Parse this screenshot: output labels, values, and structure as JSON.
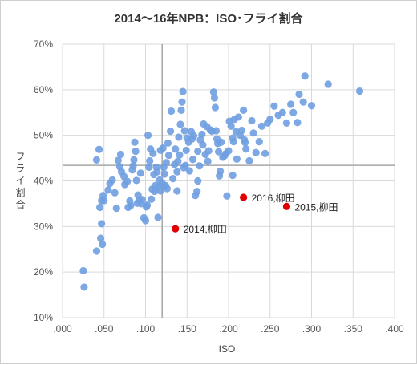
{
  "chart_data": {
    "type": "scatter",
    "title": "2014〜16年NPB：ISO･フライ割合",
    "xlabel": "ISO",
    "ylabel": "フライ割合",
    "xlim": [
      0,
      0.4
    ],
    "ylim": [
      0.1,
      0.7
    ],
    "x_ticks": [
      ".000",
      ".050",
      ".100",
      ".150",
      ".200",
      ".250",
      ".300",
      ".350",
      ".400"
    ],
    "y_ticks": [
      "10%",
      "20%",
      "30%",
      "40%",
      "50%",
      "60%",
      "70%"
    ],
    "reference_lines": {
      "x": 0.12,
      "y": 0.434
    },
    "grid": true,
    "colors": {
      "points": "#6f9fe0",
      "highlight": "#e00000",
      "gridline": "#d9d9d9",
      "reference": "#a6a6a6"
    },
    "series": [
      {
        "points": [
          [
            0.025,
            0.203
          ],
          [
            0.026,
            0.167
          ],
          [
            0.041,
            0.246
          ],
          [
            0.046,
            0.274
          ],
          [
            0.047,
            0.306
          ],
          [
            0.048,
            0.261
          ],
          [
            0.045,
            0.342
          ],
          [
            0.047,
            0.357
          ],
          [
            0.049,
            0.368
          ],
          [
            0.05,
            0.357
          ],
          [
            0.041,
            0.446
          ],
          [
            0.044,
            0.469
          ],
          [
            0.055,
            0.38
          ],
          [
            0.057,
            0.394
          ],
          [
            0.06,
            0.402
          ],
          [
            0.063,
            0.374
          ],
          [
            0.065,
            0.34
          ],
          [
            0.067,
            0.445
          ],
          [
            0.069,
            0.431
          ],
          [
            0.07,
            0.458
          ],
          [
            0.071,
            0.42
          ],
          [
            0.074,
            0.41
          ],
          [
            0.075,
            0.392
          ],
          [
            0.078,
            0.399
          ],
          [
            0.081,
            0.356
          ],
          [
            0.082,
            0.346
          ],
          [
            0.084,
            0.424
          ],
          [
            0.085,
            0.433
          ],
          [
            0.086,
            0.446
          ],
          [
            0.087,
            0.485
          ],
          [
            0.088,
            0.465
          ],
          [
            0.089,
            0.401
          ],
          [
            0.09,
            0.351
          ],
          [
            0.091,
            0.369
          ],
          [
            0.092,
            0.358
          ],
          [
            0.094,
            0.417
          ],
          [
            0.095,
            0.35
          ],
          [
            0.096,
            0.359
          ],
          [
            0.098,
            0.319
          ],
          [
            0.1,
            0.313
          ],
          [
            0.101,
            0.343
          ],
          [
            0.102,
            0.347
          ],
          [
            0.104,
            0.43
          ],
          [
            0.105,
            0.444
          ],
          [
            0.106,
            0.47
          ],
          [
            0.107,
            0.36
          ],
          [
            0.108,
            0.382
          ],
          [
            0.109,
            0.46
          ],
          [
            0.11,
            0.414
          ],
          [
            0.111,
            0.377
          ],
          [
            0.112,
            0.39
          ],
          [
            0.113,
            0.43
          ],
          [
            0.114,
            0.42
          ],
          [
            0.115,
            0.32
          ],
          [
            0.116,
            0.387
          ],
          [
            0.117,
            0.402
          ],
          [
            0.118,
            0.378
          ],
          [
            0.12,
            0.395
          ],
          [
            0.121,
            0.472
          ],
          [
            0.122,
            0.43
          ],
          [
            0.123,
            0.415
          ],
          [
            0.124,
            0.39
          ],
          [
            0.125,
            0.44
          ],
          [
            0.126,
            0.383
          ],
          [
            0.127,
            0.483
          ],
          [
            0.128,
            0.456
          ],
          [
            0.13,
            0.509
          ],
          [
            0.131,
            0.553
          ],
          [
            0.133,
            0.405
          ],
          [
            0.135,
            0.436
          ],
          [
            0.136,
            0.47
          ],
          [
            0.138,
            0.42
          ],
          [
            0.139,
            0.443
          ],
          [
            0.14,
            0.496
          ],
          [
            0.141,
            0.457
          ],
          [
            0.142,
            0.524
          ],
          [
            0.143,
            0.555
          ],
          [
            0.144,
            0.573
          ],
          [
            0.145,
            0.596
          ],
          [
            0.146,
            0.429
          ],
          [
            0.147,
            0.51
          ],
          [
            0.148,
            0.434
          ],
          [
            0.149,
            0.467
          ],
          [
            0.15,
            0.494
          ],
          [
            0.152,
            0.485
          ],
          [
            0.153,
            0.422
          ],
          [
            0.155,
            0.508
          ],
          [
            0.156,
            0.492
          ],
          [
            0.158,
            0.499
          ],
          [
            0.16,
            0.368
          ],
          [
            0.162,
            0.377
          ],
          [
            0.163,
            0.4
          ],
          [
            0.165,
            0.433
          ],
          [
            0.166,
            0.49
          ],
          [
            0.168,
            0.502
          ],
          [
            0.169,
            0.479
          ],
          [
            0.17,
            0.525
          ],
          [
            0.172,
            0.458
          ],
          [
            0.175,
            0.443
          ],
          [
            0.176,
            0.466
          ],
          [
            0.178,
            0.512
          ],
          [
            0.18,
            0.509
          ],
          [
            0.182,
            0.595
          ],
          [
            0.183,
            0.582
          ],
          [
            0.184,
            0.561
          ],
          [
            0.185,
            0.51
          ],
          [
            0.186,
            0.492
          ],
          [
            0.187,
            0.482
          ],
          [
            0.188,
            0.464
          ],
          [
            0.189,
            0.411
          ],
          [
            0.19,
            0.421
          ],
          [
            0.191,
            0.485
          ],
          [
            0.193,
            0.452
          ],
          [
            0.195,
            0.455
          ],
          [
            0.197,
            0.46
          ],
          [
            0.2,
            0.466
          ],
          [
            0.201,
            0.531
          ],
          [
            0.203,
            0.52
          ],
          [
            0.205,
            0.494
          ],
          [
            0.207,
            0.535
          ],
          [
            0.209,
            0.508
          ],
          [
            0.21,
            0.448
          ],
          [
            0.212,
            0.54
          ],
          [
            0.214,
            0.5
          ],
          [
            0.216,
            0.511
          ],
          [
            0.218,
            0.555
          ],
          [
            0.219,
            0.49
          ],
          [
            0.22,
            0.484
          ],
          [
            0.221,
            0.47
          ],
          [
            0.225,
            0.444
          ],
          [
            0.228,
            0.532
          ],
          [
            0.23,
            0.505
          ],
          [
            0.233,
            0.462
          ],
          [
            0.237,
            0.486
          ],
          [
            0.24,
            0.52
          ],
          [
            0.244,
            0.46
          ],
          [
            0.247,
            0.527
          ],
          [
            0.25,
            0.535
          ],
          [
            0.255,
            0.564
          ],
          [
            0.26,
            0.544
          ],
          [
            0.265,
            0.55
          ],
          [
            0.27,
            0.527
          ],
          [
            0.275,
            0.568
          ],
          [
            0.278,
            0.55
          ],
          [
            0.283,
            0.528
          ],
          [
            0.285,
            0.59
          ],
          [
            0.29,
            0.573
          ],
          [
            0.292,
            0.63
          ],
          [
            0.3,
            0.565
          ],
          [
            0.32,
            0.612
          ],
          [
            0.358,
            0.597
          ],
          [
            0.198,
            0.367
          ],
          [
            0.205,
            0.412
          ],
          [
            0.157,
            0.447
          ],
          [
            0.122,
            0.388
          ],
          [
            0.079,
            0.342
          ],
          [
            0.103,
            0.5
          ],
          [
            0.118,
            0.467
          ],
          [
            0.138,
            0.378
          ],
          [
            0.163,
            0.465
          ],
          [
            0.174,
            0.519
          ],
          [
            0.206,
            0.486
          ]
        ]
      },
      {
        "highlight": true,
        "points": [
          [
            0.136,
            0.295
          ],
          [
            0.218,
            0.364
          ],
          [
            0.27,
            0.344
          ]
        ],
        "labels": [
          "2014,柳田",
          "2016,柳田",
          "2015,柳田"
        ]
      }
    ]
  }
}
